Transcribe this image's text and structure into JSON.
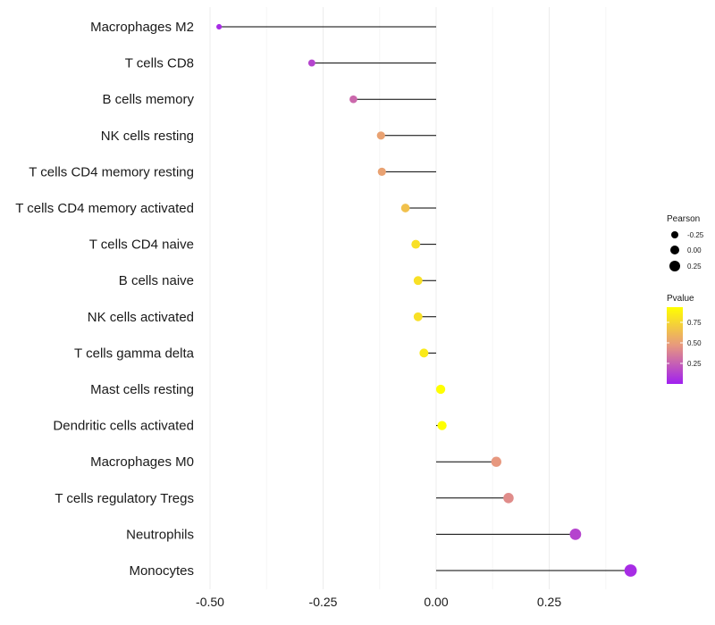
{
  "chart_data": {
    "type": "lollipop",
    "categories": [
      "Macrophages M2",
      "T cells CD8",
      "B cells memory",
      "NK cells resting",
      "T cells CD4 memory resting",
      "T cells CD4 memory activated",
      "T cells CD4 naive",
      "B cells naive",
      "NK cells activated",
      "T cells gamma delta",
      "Mast cells resting",
      "Dendritic cells activated",
      "Macrophages M0",
      "T cells regulatory  Tregs ",
      "Neutrophils",
      "Monocytes"
    ],
    "values": [
      -0.48,
      -0.275,
      -0.183,
      -0.122,
      -0.12,
      -0.068,
      -0.045,
      -0.04,
      -0.04,
      -0.027,
      0.01,
      0.013,
      0.133,
      0.16,
      0.308,
      0.43
    ],
    "pvalues": [
      0.05,
      0.15,
      0.3,
      0.55,
      0.55,
      0.7,
      0.85,
      0.85,
      0.85,
      0.9,
      1.0,
      1.0,
      0.5,
      0.45,
      0.15,
      0.05
    ],
    "xlim": [
      -0.5,
      0.45
    ],
    "xticks": [
      -0.5,
      -0.25,
      0.0,
      0.25
    ],
    "xtick_labels": [
      "-0.50",
      "-0.25",
      "0.00",
      "0.25"
    ],
    "grid": true,
    "legend_size": {
      "title": "Pearson",
      "labels": [
        "-0.25",
        "0.00",
        "0.25"
      ]
    },
    "legend_color": {
      "title": "Pvalue",
      "labels": [
        "0.75",
        "0.50",
        "0.25"
      ],
      "low_color": "#a020f0",
      "high_color": "#ffff00"
    }
  }
}
